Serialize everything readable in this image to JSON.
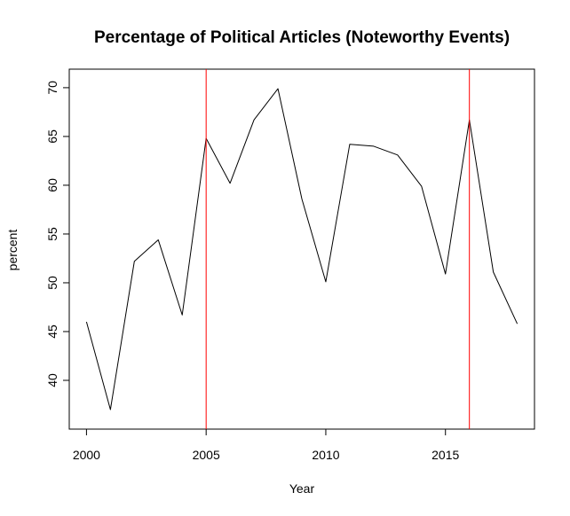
{
  "chart_data": {
    "type": "line",
    "title": "Percentage of Political Articles (Noteworthy Events)",
    "xlabel": "Year",
    "ylabel": "percent",
    "x": [
      2000,
      2001,
      2002,
      2003,
      2004,
      2005,
      2006,
      2007,
      2008,
      2009,
      2010,
      2011,
      2012,
      2013,
      2014,
      2015,
      2016,
      2017,
      2018
    ],
    "series": [
      {
        "values": [
          46.0,
          37.0,
          52.2,
          54.4,
          46.7,
          64.8,
          60.2,
          66.7,
          69.9,
          58.6,
          50.1,
          64.2,
          64.0,
          63.1,
          59.9,
          50.9,
          66.7,
          51.1,
          45.8
        ],
        "color": "#000000"
      }
    ],
    "x_ticks": [
      2000,
      2005,
      2010,
      2015
    ],
    "y_ticks": [
      40,
      45,
      50,
      55,
      60,
      65,
      70
    ],
    "xlim": [
      1999.28,
      2018.72
    ],
    "ylim": [
      35.0,
      71.9
    ],
    "vertical_lines": [
      {
        "x": 2005,
        "color": "#ff0000"
      },
      {
        "x": 2016,
        "color": "#ff0000"
      }
    ],
    "grid": false,
    "legend": "none"
  }
}
